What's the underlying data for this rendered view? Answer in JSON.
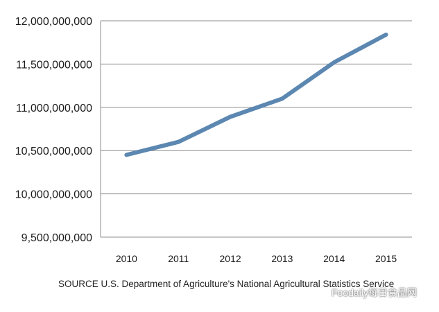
{
  "chart_data": {
    "type": "line",
    "title": "",
    "xlabel": "",
    "ylabel": "",
    "categories": [
      "2010",
      "2011",
      "2012",
      "2013",
      "2014",
      "2015"
    ],
    "series": [
      {
        "name": "",
        "values": [
          10450000000,
          10600000000,
          10890000000,
          11100000000,
          11520000000,
          11840000000
        ]
      }
    ],
    "ylim": [
      9500000000,
      12000000000
    ],
    "yticks": [
      9500000000,
      10000000000,
      10500000000,
      11000000000,
      11500000000,
      12000000000
    ],
    "ytick_labels": [
      "9,500,000,000",
      "10,000,000,000",
      "10,500,000,000",
      "11,000,000,000",
      "11,500,000,000",
      "12,000,000,000"
    ],
    "grid": true,
    "line_color": "#5b87b1"
  },
  "source": "SOURCE U.S. Department of Agriculture's National Agricultural Statistics Service",
  "watermark": {
    "text": "Foodaily每日食品网",
    "icon": "wechat-icon"
  }
}
